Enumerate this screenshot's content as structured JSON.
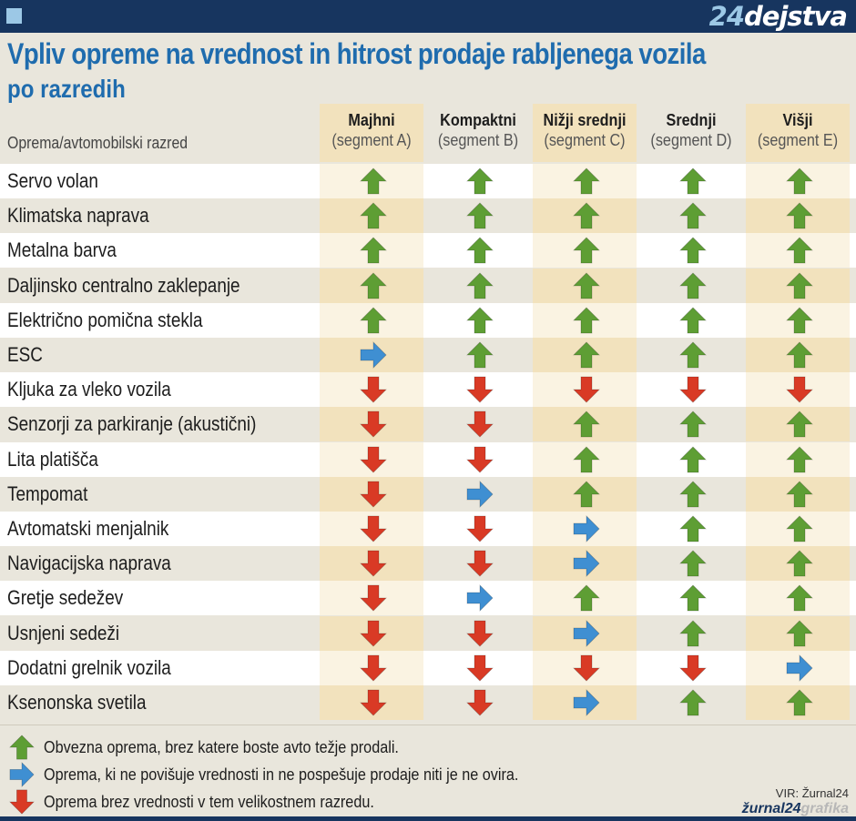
{
  "brand": {
    "number": "24",
    "word": "dejstva"
  },
  "title": "Vpliv opreme na vrednost in hitrost prodaje rabljenega vozila",
  "subtitle": "po razredih",
  "row_header": "Oprema/avtomobilski razred",
  "columns": [
    {
      "name": "Majhni",
      "segment": "(segment A)"
    },
    {
      "name": "Kompaktni",
      "segment": "(segment B)"
    },
    {
      "name": "Nižji srednji",
      "segment": "(segment C)"
    },
    {
      "name": "Srednji",
      "segment": "(segment D)"
    },
    {
      "name": "Višji",
      "segment": "(segment E)"
    }
  ],
  "rows": [
    {
      "label": "Servo volan",
      "values": [
        "up",
        "up",
        "up",
        "up",
        "up"
      ]
    },
    {
      "label": "Klimatska  naprava",
      "values": [
        "up",
        "up",
        "up",
        "up",
        "up"
      ]
    },
    {
      "label": "Metalna barva",
      "values": [
        "up",
        "up",
        "up",
        "up",
        "up"
      ]
    },
    {
      "label": "Daljinsko centralno zaklepanje",
      "values": [
        "up",
        "up",
        "up",
        "up",
        "up"
      ]
    },
    {
      "label": "Električno pomična stekla",
      "values": [
        "up",
        "up",
        "up",
        "up",
        "up"
      ]
    },
    {
      "label": "ESC",
      "values": [
        "right",
        "up",
        "up",
        "up",
        "up"
      ]
    },
    {
      "label": "Kljuka za vleko vozila",
      "values": [
        "down",
        "down",
        "down",
        "down",
        "down"
      ]
    },
    {
      "label": "Senzorji za parkiranje (akustični)",
      "values": [
        "down",
        "down",
        "up",
        "up",
        "up"
      ]
    },
    {
      "label": "Lita platišča",
      "values": [
        "down",
        "down",
        "up",
        "up",
        "up"
      ]
    },
    {
      "label": "Tempomat",
      "values": [
        "down",
        "right",
        "up",
        "up",
        "up"
      ]
    },
    {
      "label": "Avtomatski menjalnik",
      "values": [
        "down",
        "down",
        "right",
        "up",
        "up"
      ]
    },
    {
      "label": "Navigacijska naprava",
      "values": [
        "down",
        "down",
        "right",
        "up",
        "up"
      ]
    },
    {
      "label": "Gretje sedežev",
      "values": [
        "down",
        "right",
        "up",
        "up",
        "up"
      ]
    },
    {
      "label": "Usnjeni sedeži",
      "values": [
        "down",
        "down",
        "right",
        "up",
        "up"
      ]
    },
    {
      "label": "Dodatni grelnik vozila",
      "values": [
        "down",
        "down",
        "down",
        "down",
        "right"
      ]
    },
    {
      "label": "Ksenonska svetila",
      "values": [
        "down",
        "down",
        "right",
        "up",
        "up"
      ]
    }
  ],
  "legend": [
    {
      "icon": "up",
      "text": "Obvezna oprema, brez katere boste avto težje prodali."
    },
    {
      "icon": "right",
      "text": "Oprema, ki ne povišuje vrednosti in ne pospešuje prodaje niti je ne ovira."
    },
    {
      "icon": "down",
      "text": "Oprema brez vrednosti v tem velikostnem razredu."
    }
  ],
  "source": "VIR: Žurnal24",
  "credit": {
    "a": "žurnal24",
    "b": "grafika"
  },
  "colors": {
    "up": "#5e9e34",
    "right": "#3f8fd2",
    "down": "#d93a25",
    "title": "#1f6cae",
    "topbar": "#17355f"
  }
}
